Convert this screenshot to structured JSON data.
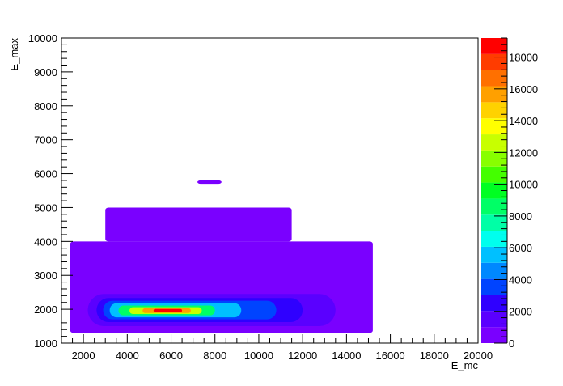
{
  "chart_data": {
    "type": "heatmap",
    "title": "",
    "xlabel": "E_mc",
    "ylabel": "E_max",
    "xlim": [
      1000,
      20000
    ],
    "ylim": [
      1000,
      10000
    ],
    "x_ticks": [
      2000,
      4000,
      6000,
      8000,
      10000,
      12000,
      14000,
      16000,
      18000,
      20000
    ],
    "x_tick_labels": [
      "2000",
      "4000",
      "6000",
      "8000",
      "10000",
      "12000",
      "14000",
      "16000",
      "18000",
      "20000"
    ],
    "y_ticks": [
      1000,
      2000,
      3000,
      4000,
      5000,
      6000,
      7000,
      8000,
      9000,
      10000
    ],
    "y_tick_labels": [
      "1000",
      "2000",
      "3000",
      "4000",
      "5000",
      "6000",
      "7000",
      "8000",
      "9000",
      "10000"
    ],
    "colorbar": {
      "range": [
        0,
        19200
      ],
      "ticks": [
        0,
        2000,
        4000,
        6000,
        8000,
        10000,
        12000,
        14000,
        16000,
        18000
      ],
      "tick_labels": [
        "0",
        "2000",
        "4000",
        "6000",
        "8000",
        "10000",
        "12000",
        "14000",
        "16000",
        "18000"
      ],
      "colors": [
        "#7a00ff",
        "#5a00ff",
        "#2f00ff",
        "#0044ff",
        "#0088ff",
        "#00c0ff",
        "#00ffee",
        "#00ffa6",
        "#00ff66",
        "#00ff22",
        "#44ff00",
        "#88ff00",
        "#c8ff00",
        "#ffff00",
        "#ffd200",
        "#ffa000",
        "#ff7000",
        "#ff3c00",
        "#ff0000"
      ]
    },
    "regions": [
      {
        "name": "populated-region",
        "x0": 1400,
        "x1": 15200,
        "y0": 1300,
        "y1": 4000,
        "level": 0
      },
      {
        "name": "sparse-tail",
        "x0": 3000,
        "x1": 11500,
        "y0": 4000,
        "y1": 5000,
        "level": 0
      },
      {
        "name": "outlier-island",
        "x0": 7200,
        "x1": 8300,
        "y0": 5700,
        "y1": 5800,
        "level": 0
      },
      {
        "name": "core-level-1",
        "x0": 2200,
        "x1": 13500,
        "y0": 1500,
        "y1": 2450,
        "level": 1
      },
      {
        "name": "core-level-2",
        "x0": 2600,
        "x1": 12000,
        "y0": 1620,
        "y1": 2330,
        "level": 2
      },
      {
        "name": "core-level-3",
        "x0": 2900,
        "x1": 10800,
        "y0": 1700,
        "y1": 2250,
        "level": 3
      },
      {
        "name": "core-level-5",
        "x0": 3200,
        "x1": 9200,
        "y0": 1760,
        "y1": 2180,
        "level": 5
      },
      {
        "name": "core-level-8",
        "x0": 3600,
        "x1": 8000,
        "y0": 1820,
        "y1": 2110,
        "level": 8
      },
      {
        "name": "core-level-12",
        "x0": 4100,
        "x1": 7400,
        "y0": 1860,
        "y1": 2060,
        "level": 12
      },
      {
        "name": "core-level-15",
        "x0": 4700,
        "x1": 6900,
        "y0": 1890,
        "y1": 2030,
        "level": 15
      },
      {
        "name": "core-level-18",
        "x0": 5200,
        "x1": 6500,
        "y0": 1910,
        "y1": 2010,
        "level": 18
      }
    ]
  }
}
